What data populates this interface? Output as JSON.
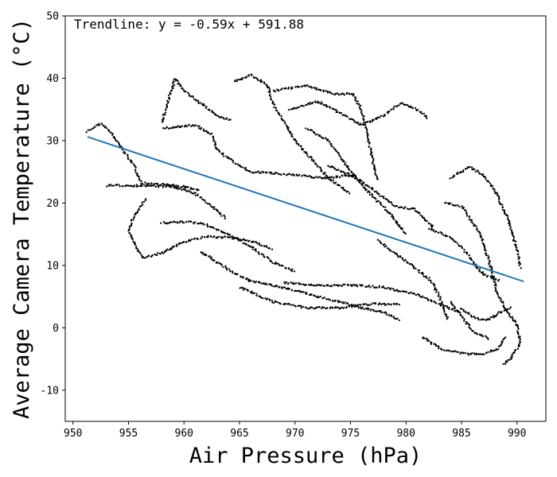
{
  "chart_data": {
    "type": "scatter",
    "title": "",
    "xlabel": "Air Pressure (hPa)",
    "ylabel": "Average Camera Temperature (°C)",
    "xlim": [
      949.3,
      992.6
    ],
    "ylim": [
      -15,
      50
    ],
    "xticks": [
      950,
      955,
      960,
      965,
      970,
      975,
      980,
      985,
      990
    ],
    "yticks": [
      -10,
      0,
      10,
      20,
      30,
      40,
      50
    ],
    "grid": false,
    "legend": "none",
    "annotation": "Trendline: y = -0.59x + 591.88",
    "trendline": {
      "slope": -0.59,
      "intercept": 591.88,
      "x_range": [
        951.3,
        990.6
      ],
      "color": "#1f77b4"
    },
    "series": [
      {
        "color": "#000000",
        "approx_paths": [
          [
            [
              951.3,
              31.5
            ],
            [
              952.5,
              32.8
            ],
            [
              953.3,
              31.5
            ],
            [
              954.5,
              28.5
            ],
            [
              955.5,
              26
            ],
            [
              956.2,
              23.2
            ],
            [
              958,
              23
            ],
            [
              960,
              22.6
            ],
            [
              961.5,
              22
            ]
          ],
          [
            [
              953,
              22.8
            ],
            [
              956,
              22.8
            ],
            [
              959,
              22.6
            ],
            [
              961,
              21.5
            ],
            [
              962.5,
              19.5
            ],
            [
              963.8,
              17.5
            ]
          ],
          [
            [
              956.5,
              20.5
            ],
            [
              955.5,
              18
            ],
            [
              955,
              15.5
            ],
            [
              955.7,
              13
            ],
            [
              956.3,
              11.2
            ],
            [
              958,
              12
            ],
            [
              960,
              13.8
            ],
            [
              962,
              14.6
            ],
            [
              964,
              14.5
            ],
            [
              966.5,
              13.7
            ],
            [
              968,
              12.5
            ]
          ],
          [
            [
              958,
              16.8
            ],
            [
              960.5,
              17
            ],
            [
              962,
              16.5
            ],
            [
              964,
              15
            ],
            [
              966,
              13
            ],
            [
              968,
              10.5
            ],
            [
              970,
              9
            ]
          ],
          [
            [
              958.2,
              32
            ],
            [
              961,
              32.5
            ],
            [
              962.5,
              31
            ],
            [
              963,
              28.5
            ],
            [
              964.5,
              26.5
            ],
            [
              966,
              25
            ],
            [
              968,
              24.8
            ],
            [
              970,
              24.5
            ],
            [
              972.5,
              24
            ],
            [
              975.5,
              24.5
            ]
          ],
          [
            [
              961.5,
              12.2
            ],
            [
              963,
              10.5
            ],
            [
              964.5,
              8.8
            ],
            [
              966,
              7.5
            ],
            [
              968,
              6.8
            ],
            [
              970,
              6
            ],
            [
              972,
              5
            ],
            [
              974,
              4.2
            ],
            [
              976,
              3.2
            ],
            [
              978,
              2.5
            ],
            [
              979.5,
              1.2
            ]
          ],
          [
            [
              958,
              33
            ],
            [
              958.5,
              36
            ],
            [
              959.2,
              40
            ],
            [
              960,
              38
            ],
            [
              961.5,
              36
            ],
            [
              963,
              34
            ],
            [
              964.3,
              33.2
            ]
          ],
          [
            [
              964.5,
              39.5
            ],
            [
              966,
              40.5
            ],
            [
              967.5,
              39
            ],
            [
              968,
              36
            ],
            [
              969,
              33
            ],
            [
              970,
              30
            ],
            [
              971.5,
              27
            ],
            [
              973,
              24
            ],
            [
              975,
              21.5
            ]
          ],
          [
            [
              968,
              38
            ],
            [
              971,
              38.8
            ],
            [
              973.5,
              37.5
            ],
            [
              975.2,
              37.5
            ],
            [
              976,
              35
            ],
            [
              976.5,
              31
            ],
            [
              977,
              27
            ],
            [
              977.4,
              23.5
            ]
          ],
          [
            [
              969.5,
              35
            ],
            [
              972,
              36.3
            ],
            [
              974,
              34.5
            ],
            [
              976,
              32.5
            ],
            [
              978,
              34
            ],
            [
              979.5,
              36
            ],
            [
              981,
              35
            ],
            [
              982,
              33.5
            ]
          ],
          [
            [
              971,
              32
            ],
            [
              973,
              30
            ],
            [
              974.2,
              27
            ],
            [
              975.5,
              24
            ],
            [
              977,
              21
            ],
            [
              978.5,
              18.5
            ],
            [
              980,
              15
            ]
          ],
          [
            [
              965,
              6.5
            ],
            [
              968,
              4.2
            ],
            [
              971,
              3.2
            ],
            [
              974,
              3.2
            ],
            [
              977,
              3.8
            ],
            [
              979.5,
              3.8
            ]
          ],
          [
            [
              969,
              7.2
            ],
            [
              972,
              6.8
            ],
            [
              975,
              6.8
            ],
            [
              978,
              6.5
            ],
            [
              981,
              5.3
            ],
            [
              983,
              3.8
            ],
            [
              985,
              2.3
            ]
          ],
          [
            [
              982,
              16
            ],
            [
              984,
              14.5
            ],
            [
              985.5,
              12
            ],
            [
              986.5,
              9.5
            ],
            [
              987,
              8.5
            ],
            [
              988.5,
              7.5
            ]
          ],
          [
            [
              984,
              24
            ],
            [
              985.7,
              25.8
            ],
            [
              987,
              24.5
            ],
            [
              988,
              22
            ],
            [
              989.2,
              17.5
            ],
            [
              990,
              12.5
            ],
            [
              990.3,
              9.5
            ]
          ],
          [
            [
              983.5,
              20
            ],
            [
              985,
              19.5
            ],
            [
              986.7,
              15
            ],
            [
              987.7,
              9.5
            ],
            [
              988.2,
              5.5
            ],
            [
              989,
              3
            ],
            [
              990,
              0.5
            ],
            [
              990.3,
              -2.5
            ],
            [
              989.4,
              -5
            ],
            [
              988.7,
              -6
            ]
          ],
          [
            [
              985,
              3
            ],
            [
              986.3,
              1.5
            ],
            [
              987.5,
              1.3
            ],
            [
              988.5,
              2.5
            ],
            [
              989.5,
              3.3
            ]
          ],
          [
            [
              984,
              4.2
            ],
            [
              986,
              -0.5
            ],
            [
              987.5,
              -1.8
            ]
          ],
          [
            [
              981.5,
              -1.5
            ],
            [
              983.3,
              -3.5
            ],
            [
              985.5,
              -4.2
            ],
            [
              987,
              -4.2
            ],
            [
              988.3,
              -3.3
            ],
            [
              989,
              -1.5
            ]
          ],
          [
            [
              977.5,
              14
            ],
            [
              979,
              12
            ],
            [
              980.5,
              10
            ],
            [
              982.3,
              7.5
            ],
            [
              983,
              5
            ],
            [
              983.8,
              1.2
            ]
          ],
          [
            [
              973,
              26
            ],
            [
              975,
              24.5
            ],
            [
              977,
              22.2
            ],
            [
              979,
              19.5
            ],
            [
              980.8,
              19
            ],
            [
              982.5,
              16
            ]
          ]
        ]
      }
    ]
  }
}
